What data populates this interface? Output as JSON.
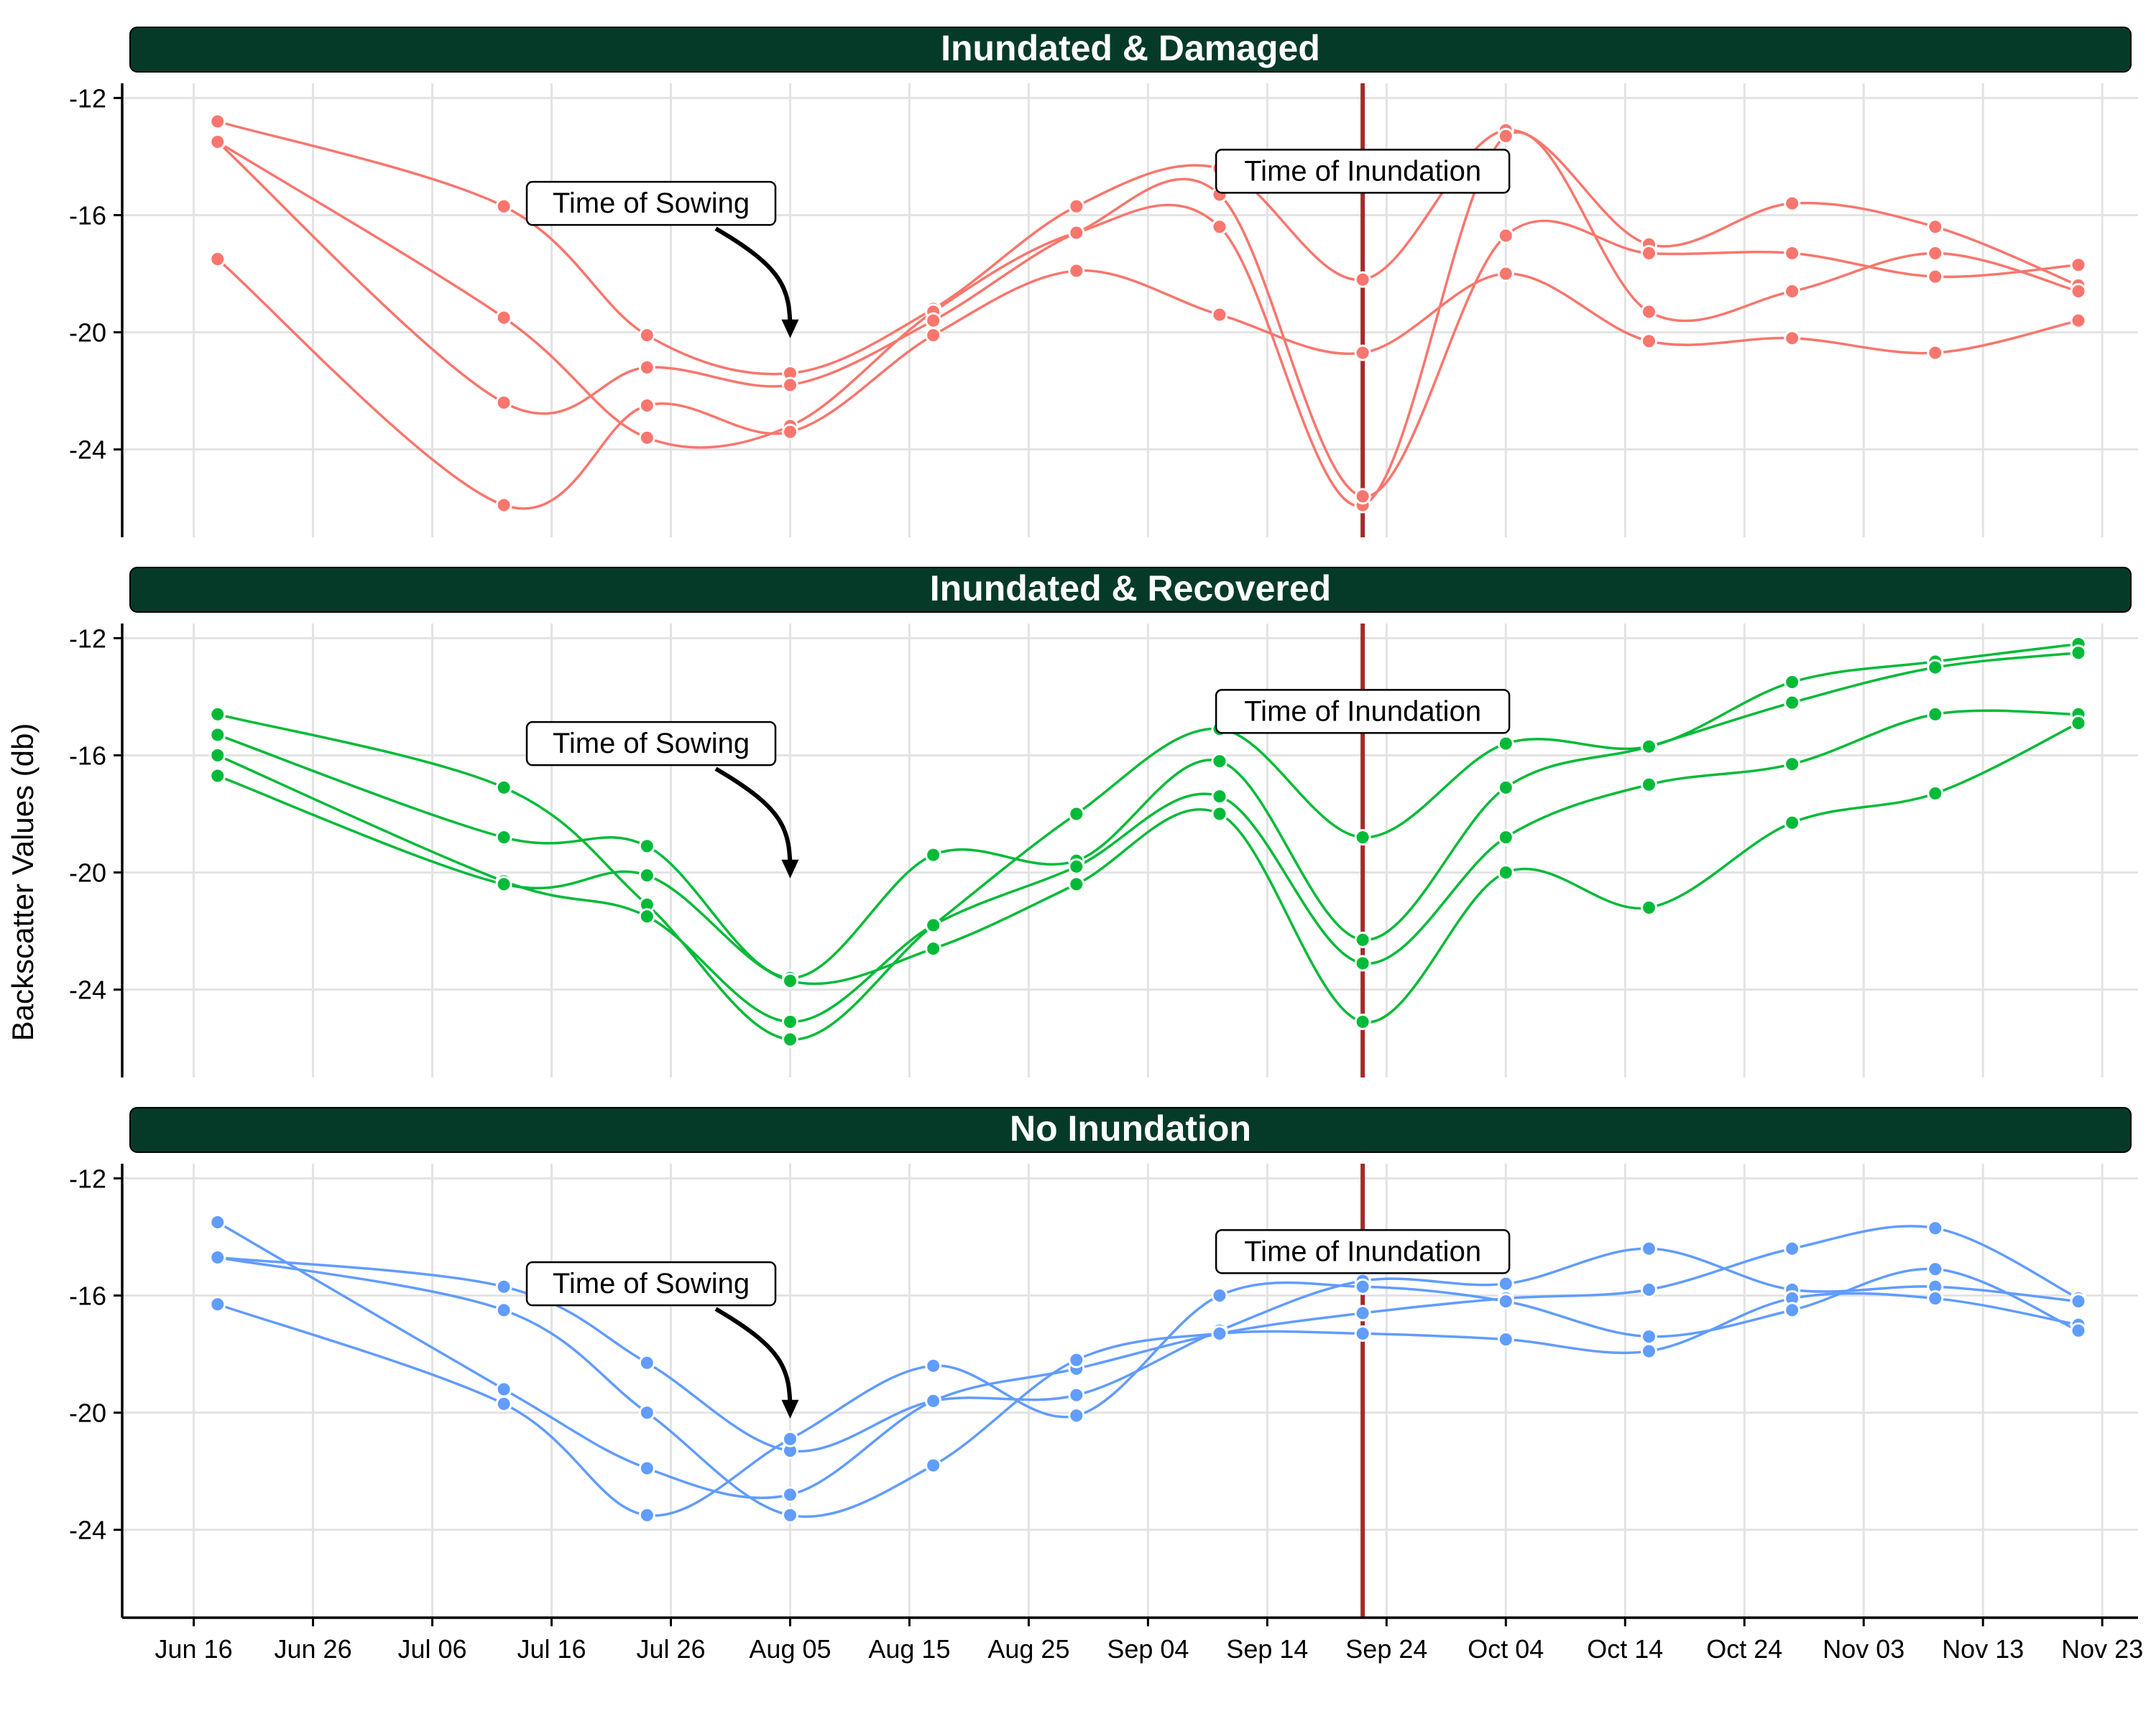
{
  "figure": {
    "ylabel": "Backscatter Values (db)",
    "colors": {
      "strip_fill": "#053A29",
      "strip_text": "#ffffff",
      "inundation_line": "#A52A2A",
      "grid": "#E3E3E3",
      "axis": "#000000"
    }
  },
  "chart_data": [
    {
      "type": "line",
      "title": "Inundated & Damaged",
      "color": "#F8766D",
      "ylim": [
        -27,
        -11.5
      ],
      "yticks": [
        "-12",
        "-16",
        "-20",
        "-24"
      ],
      "annotations": [
        {
          "text": "Time of Sowing",
          "x": "Aug 05",
          "y": -20.2,
          "arrow": true
        },
        {
          "text": "Time of Inundation",
          "x": "Sep 22",
          "y": -14.5
        }
      ],
      "series": [
        {
          "x": [
            "Jun 18",
            "Jul 12",
            "Jul 24",
            "Aug 05",
            "Aug 17",
            "Aug 29",
            "Sep 10",
            "Sep 22",
            "Oct 04",
            "Oct 16",
            "Oct 28",
            "Nov 09",
            "Nov 21"
          ],
          "values": [
            -12.8,
            -15.7,
            -20.1,
            -21.4,
            -19.2,
            -15.7,
            -14.4,
            -18.2,
            -13.1,
            -17.0,
            -15.6,
            -16.4,
            -18.4
          ]
        },
        {
          "x": [
            "Jun 18",
            "Jul 12",
            "Jul 24",
            "Aug 05",
            "Aug 17",
            "Aug 29",
            "Sep 10",
            "Sep 22",
            "Oct 04",
            "Oct 16",
            "Oct 28",
            "Nov 09",
            "Nov 21"
          ],
          "values": [
            -13.5,
            -19.5,
            -23.6,
            -23.2,
            -19.3,
            -16.6,
            -16.4,
            -25.9,
            -13.3,
            -19.3,
            -18.6,
            -17.3,
            -18.6
          ]
        },
        {
          "x": [
            "Jun 18",
            "Jul 12",
            "Jul 24",
            "Aug 05",
            "Aug 17",
            "Aug 29",
            "Sep 10",
            "Sep 22",
            "Oct 04",
            "Oct 16",
            "Oct 28",
            "Nov 09",
            "Nov 21"
          ],
          "values": [
            -13.5,
            -22.4,
            -21.2,
            -21.8,
            -19.6,
            -16.6,
            -15.3,
            -25.6,
            -16.7,
            -17.3,
            -17.3,
            -18.1,
            -17.7
          ]
        },
        {
          "x": [
            "Jun 18",
            "Jul 12",
            "Jul 24",
            "Aug 05",
            "Aug 17",
            "Aug 29",
            "Sep 10",
            "Sep 22",
            "Oct 04",
            "Oct 16",
            "Oct 28",
            "Nov 09",
            "Nov 21"
          ],
          "values": [
            -17.5,
            -25.9,
            -22.5,
            -23.4,
            -20.1,
            -17.9,
            -19.4,
            -20.7,
            -18.0,
            -20.3,
            -20.2,
            -20.7,
            -19.6
          ]
        }
      ]
    },
    {
      "type": "line",
      "title": "Inundated & Recovered",
      "color": "#00BA38",
      "ylim": [
        -27,
        -11.5
      ],
      "yticks": [
        "-12",
        "-16",
        "-20",
        "-24"
      ],
      "annotations": [
        {
          "text": "Time of Sowing",
          "x": "Aug 05",
          "y": -20.2,
          "arrow": true
        },
        {
          "text": "Time of Inundation",
          "x": "Sep 22",
          "y": -14.5
        }
      ],
      "series": [
        {
          "x": [
            "Jun 18",
            "Jul 12",
            "Jul 24",
            "Aug 05",
            "Aug 17",
            "Aug 29",
            "Sep 10",
            "Sep 22",
            "Oct 04",
            "Oct 16",
            "Oct 28",
            "Nov 09",
            "Nov 21"
          ],
          "values": [
            -14.6,
            -17.1,
            -21.1,
            -25.7,
            -21.8,
            -18.0,
            -15.1,
            -18.8,
            -15.6,
            -15.7,
            -13.5,
            -12.8,
            -12.2
          ]
        },
        {
          "x": [
            "Jun 18",
            "Jul 12",
            "Jul 24",
            "Aug 05",
            "Aug 17",
            "Aug 29",
            "Sep 10",
            "Sep 22",
            "Oct 04",
            "Oct 16",
            "Oct 28",
            "Nov 09",
            "Nov 21"
          ],
          "values": [
            -15.3,
            -18.8,
            -19.1,
            -23.6,
            -19.4,
            -19.6,
            -16.2,
            -22.3,
            -17.1,
            -15.7,
            -14.2,
            -13.0,
            -12.5
          ]
        },
        {
          "x": [
            "Jun 18",
            "Jul 12",
            "Jul 24",
            "Aug 05",
            "Aug 17",
            "Aug 29",
            "Sep 10",
            "Sep 22",
            "Oct 04",
            "Oct 16",
            "Oct 28",
            "Nov 09",
            "Nov 21"
          ],
          "values": [
            -16.0,
            -20.3,
            -21.5,
            -25.1,
            -21.8,
            -19.8,
            -17.4,
            -23.1,
            -18.8,
            -17.0,
            -16.3,
            -14.6,
            -14.6
          ]
        },
        {
          "x": [
            "Jun 18",
            "Jul 12",
            "Jul 24",
            "Aug 05",
            "Aug 17",
            "Aug 29",
            "Sep 10",
            "Sep 22",
            "Oct 04",
            "Oct 16",
            "Oct 28",
            "Nov 09",
            "Nov 21"
          ],
          "values": [
            -16.7,
            -20.4,
            -20.1,
            -23.7,
            -22.6,
            -20.4,
            -18.0,
            -25.1,
            -20.0,
            -21.2,
            -18.3,
            -17.3,
            -14.9
          ]
        }
      ]
    },
    {
      "type": "line",
      "title": "No Inundation",
      "color": "#619CFF",
      "ylim": [
        -27,
        -11.5
      ],
      "yticks": [
        "-12",
        "-16",
        "-20",
        "-24"
      ],
      "annotations": [
        {
          "text": "Time of Sowing",
          "x": "Aug 05",
          "y": -20.2,
          "arrow": true
        },
        {
          "text": "Time of Inundation",
          "x": "Sep 22",
          "y": -14.5
        }
      ],
      "series": [
        {
          "x": [
            "Jun 18",
            "Jul 12",
            "Jul 24",
            "Aug 05",
            "Aug 17",
            "Aug 29",
            "Sep 10",
            "Sep 22",
            "Oct 04",
            "Oct 16",
            "Oct 28",
            "Nov 09",
            "Nov 21"
          ],
          "values": [
            -13.5,
            -19.2,
            -21.9,
            -22.8,
            -19.6,
            -18.5,
            -17.3,
            -16.6,
            -16.1,
            -15.8,
            -14.4,
            -13.7,
            -16.1
          ]
        },
        {
          "x": [
            "Jun 18",
            "Jul 12",
            "Jul 24",
            "Aug 05",
            "Aug 17",
            "Aug 29",
            "Sep 10",
            "Sep 22",
            "Oct 04",
            "Oct 16",
            "Oct 28",
            "Nov 09",
            "Nov 21"
          ],
          "values": [
            -14.7,
            -15.7,
            -18.3,
            -21.3,
            -19.6,
            -19.4,
            -17.2,
            -15.5,
            -15.6,
            -14.4,
            -15.8,
            -15.7,
            -16.2
          ]
        },
        {
          "x": [
            "Jun 18",
            "Jul 12",
            "Jul 24",
            "Aug 05",
            "Aug 17",
            "Aug 29",
            "Sep 10",
            "Sep 22",
            "Oct 04",
            "Oct 16",
            "Oct 28",
            "Nov 09",
            "Nov 21"
          ],
          "values": [
            -14.7,
            -16.5,
            -20.0,
            -23.5,
            -21.8,
            -18.2,
            -17.3,
            -17.3,
            -17.5,
            -17.9,
            -16.1,
            -16.1,
            -17.0
          ]
        },
        {
          "x": [
            "Jun 18",
            "Jul 12",
            "Jul 24",
            "Aug 05",
            "Aug 17",
            "Aug 29",
            "Sep 10",
            "Sep 22",
            "Oct 04",
            "Oct 16",
            "Oct 28",
            "Nov 09",
            "Nov 21"
          ],
          "values": [
            -16.3,
            -19.7,
            -23.5,
            -20.9,
            -18.4,
            -20.1,
            -16.0,
            -15.7,
            -16.2,
            -17.4,
            -16.5,
            -15.1,
            -17.2
          ]
        }
      ]
    }
  ],
  "x_axis": {
    "ticks": [
      "Jun 16",
      "Jun 26",
      "Jul 06",
      "Jul 16",
      "Jul 26",
      "Aug 05",
      "Aug 15",
      "Aug 25",
      "Sep 04",
      "Sep 14",
      "Sep 24",
      "Oct 04",
      "Oct 14",
      "Oct 24",
      "Nov 03",
      "Nov 13",
      "Nov 23"
    ],
    "range": [
      "Jun 10",
      "Nov 26"
    ]
  }
}
